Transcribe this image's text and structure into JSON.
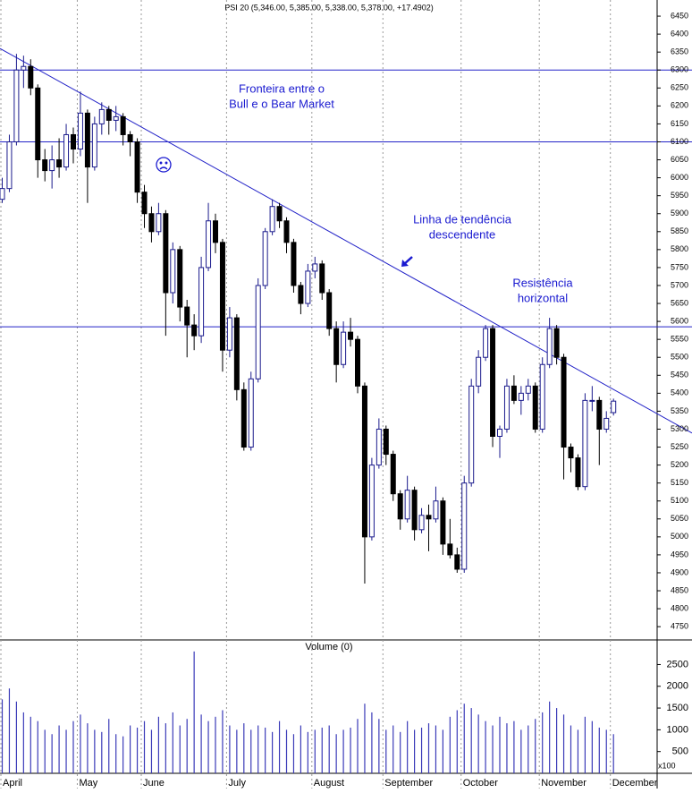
{
  "chart_data": {
    "type": "candlestick",
    "title": "PSI 20 (5,346.00, 5,385.00, 5,338.00, 5,378.00, +17.4902)",
    "categories": [
      "April",
      null,
      null,
      null,
      null,
      null,
      null,
      null,
      null,
      null,
      null,
      "May",
      null,
      null,
      null,
      null,
      null,
      null,
      null,
      null,
      "June",
      null,
      null,
      null,
      null,
      null,
      null,
      null,
      null,
      null,
      null,
      null,
      "July",
      null,
      null,
      null,
      null,
      null,
      null,
      null,
      null,
      null,
      null,
      null,
      "August",
      null,
      null,
      null,
      null,
      null,
      null,
      null,
      null,
      null,
      "September",
      null,
      null,
      null,
      null,
      null,
      null,
      null,
      null,
      null,
      null,
      "October",
      null,
      null,
      null,
      null,
      null,
      null,
      null,
      null,
      null,
      null,
      "November",
      null,
      null,
      null,
      null,
      null,
      null,
      null,
      null,
      null,
      "December"
    ],
    "ohlc": [
      [
        5940,
        6000,
        5930,
        5970
      ],
      [
        5970,
        6120,
        5960,
        6100
      ],
      [
        6100,
        6345,
        6090,
        6300
      ],
      [
        6300,
        6340,
        6250,
        6310
      ],
      [
        6310,
        6330,
        6230,
        6250
      ],
      [
        6250,
        6260,
        6000,
        6050
      ],
      [
        6050,
        6080,
        5990,
        6020
      ],
      [
        6020,
        6090,
        5970,
        6050
      ],
      [
        6050,
        6110,
        6000,
        6030
      ],
      [
        6030,
        6150,
        6020,
        6120
      ],
      [
        6120,
        6140,
        6040,
        6080
      ],
      [
        6080,
        6240,
        6060,
        6180
      ],
      [
        6180,
        6190,
        5930,
        6030
      ],
      [
        6030,
        6170,
        6020,
        6150
      ],
      [
        6150,
        6210,
        6120,
        6190
      ],
      [
        6190,
        6200,
        6120,
        6160
      ],
      [
        6160,
        6200,
        6130,
        6170
      ],
      [
        6170,
        6180,
        6090,
        6120
      ],
      [
        6120,
        6130,
        6060,
        6100
      ],
      [
        6100,
        6110,
        5930,
        5960
      ],
      [
        5960,
        5980,
        5860,
        5900
      ],
      [
        5900,
        5920,
        5820,
        5850
      ],
      [
        5850,
        5930,
        5840,
        5900
      ],
      [
        5900,
        5910,
        5560,
        5680
      ],
      [
        5680,
        5820,
        5650,
        5800
      ],
      [
        5800,
        5810,
        5600,
        5640
      ],
      [
        5640,
        5660,
        5500,
        5590
      ],
      [
        5590,
        5620,
        5520,
        5560
      ],
      [
        5560,
        5780,
        5540,
        5750
      ],
      [
        5750,
        5930,
        5740,
        5880
      ],
      [
        5880,
        5900,
        5790,
        5820
      ],
      [
        5820,
        5830,
        5460,
        5520
      ],
      [
        5520,
        5640,
        5500,
        5610
      ],
      [
        5610,
        5620,
        5380,
        5410
      ],
      [
        5410,
        5430,
        5240,
        5250
      ],
      [
        5250,
        5460,
        5240,
        5440
      ],
      [
        5440,
        5720,
        5430,
        5700
      ],
      [
        5700,
        5860,
        5690,
        5850
      ],
      [
        5850,
        5940,
        5840,
        5920
      ],
      [
        5920,
        5930,
        5860,
        5880
      ],
      [
        5880,
        5890,
        5790,
        5820
      ],
      [
        5820,
        5830,
        5680,
        5700
      ],
      [
        5700,
        5710,
        5620,
        5650
      ],
      [
        5650,
        5760,
        5640,
        5740
      ],
      [
        5740,
        5780,
        5720,
        5760
      ],
      [
        5760,
        5770,
        5660,
        5680
      ],
      [
        5680,
        5690,
        5560,
        5580
      ],
      [
        5580,
        5600,
        5430,
        5480
      ],
      [
        5480,
        5600,
        5470,
        5570
      ],
      [
        5570,
        5610,
        5530,
        5550
      ],
      [
        5550,
        5560,
        5400,
        5420
      ],
      [
        5420,
        5430,
        4870,
        5000
      ],
      [
        5000,
        5220,
        4990,
        5200
      ],
      [
        5200,
        5330,
        5190,
        5300
      ],
      [
        5300,
        5310,
        5200,
        5230
      ],
      [
        5230,
        5240,
        5100,
        5120
      ],
      [
        5120,
        5130,
        5020,
        5050
      ],
      [
        5050,
        5170,
        5040,
        5130
      ],
      [
        5130,
        5140,
        4990,
        5020
      ],
      [
        5020,
        5080,
        5010,
        5060
      ],
      [
        5060,
        5090,
        4960,
        5050
      ],
      [
        5050,
        5140,
        5040,
        5100
      ],
      [
        5100,
        5110,
        4950,
        4980
      ],
      [
        4980,
        5050,
        4940,
        4950
      ],
      [
        4950,
        4970,
        4900,
        4910
      ],
      [
        4910,
        5170,
        4900,
        5150
      ],
      [
        5150,
        5440,
        5140,
        5420
      ],
      [
        5420,
        5520,
        5400,
        5500
      ],
      [
        5500,
        5590,
        5490,
        5580
      ],
      [
        5580,
        5590,
        5250,
        5280
      ],
      [
        5280,
        5310,
        5220,
        5300
      ],
      [
        5300,
        5440,
        5290,
        5420
      ],
      [
        5420,
        5450,
        5370,
        5380
      ],
      [
        5380,
        5420,
        5340,
        5400
      ],
      [
        5400,
        5440,
        5380,
        5420
      ],
      [
        5420,
        5430,
        5290,
        5300
      ],
      [
        5300,
        5500,
        5290,
        5480
      ],
      [
        5480,
        5610,
        5470,
        5580
      ],
      [
        5580,
        5590,
        5480,
        5500
      ],
      [
        5500,
        5510,
        5160,
        5250
      ],
      [
        5250,
        5260,
        5180,
        5220
      ],
      [
        5220,
        5230,
        5130,
        5140
      ],
      [
        5140,
        5400,
        5130,
        5380
      ],
      [
        5380,
        5420,
        5350,
        5380
      ],
      [
        5380,
        5390,
        5200,
        5300
      ],
      [
        5300,
        5350,
        5290,
        5330
      ],
      [
        5346,
        5385,
        5338,
        5378
      ]
    ],
    "ylim": [
      4713,
      6495
    ],
    "yticks": [
      4750,
      4800,
      4850,
      4900,
      4950,
      5000,
      5050,
      5100,
      5150,
      5200,
      5250,
      5300,
      5350,
      5400,
      5450,
      5500,
      5550,
      5600,
      5650,
      5700,
      5750,
      5800,
      5850,
      5900,
      5950,
      6000,
      6050,
      6100,
      6150,
      6200,
      6250,
      6300,
      6350,
      6400,
      6450
    ],
    "up_color": "#ffffff",
    "down_color": "#000000",
    "outline_color": "#1a1a8c",
    "line_color": "#2323c8",
    "hlines": [
      6300,
      6100,
      5585
    ],
    "trendline": [
      6360,
      5343
    ],
    "annotations": [
      {
        "lines": [
          "Fronteira entre o",
          "Bull e o Bear Market"
        ]
      },
      {
        "lines": [
          "Linha de tendência",
          "descendente"
        ]
      },
      {
        "lines": [
          "Resistência",
          "horizontal"
        ]
      }
    ],
    "volume": {
      "title": "Volume (0)",
      "color": "#3a3ab8",
      "unit_label": "x100",
      "ylim": [
        0,
        3065
      ],
      "yticks": [
        500,
        1000,
        1500,
        2000,
        2500
      ],
      "values": [
        1700,
        1950,
        1650,
        1400,
        1300,
        1200,
        1000,
        900,
        1100,
        1000,
        1200,
        1350,
        1150,
        1000,
        950,
        1250,
        900,
        850,
        1100,
        1050,
        1200,
        1000,
        1300,
        1150,
        1400,
        1100,
        1250,
        2800,
        1350,
        1200,
        1300,
        1450,
        1100,
        1000,
        1150,
        1000,
        1100,
        1050,
        950,
        1200,
        1000,
        900,
        1100,
        950,
        1000,
        1050,
        1100,
        900,
        1000,
        1050,
        1250,
        1600,
        1400,
        1250,
        1000,
        1100,
        950,
        1200,
        1000,
        1050,
        1150,
        1100,
        1000,
        1300,
        1450,
        1600,
        1500,
        1350,
        1200,
        1100,
        1300,
        1150,
        1200,
        1000,
        1100,
        1250,
        1400,
        1650,
        1500,
        1350,
        1100,
        1000,
        1300,
        1200,
        1050,
        1000,
        900
      ]
    }
  }
}
